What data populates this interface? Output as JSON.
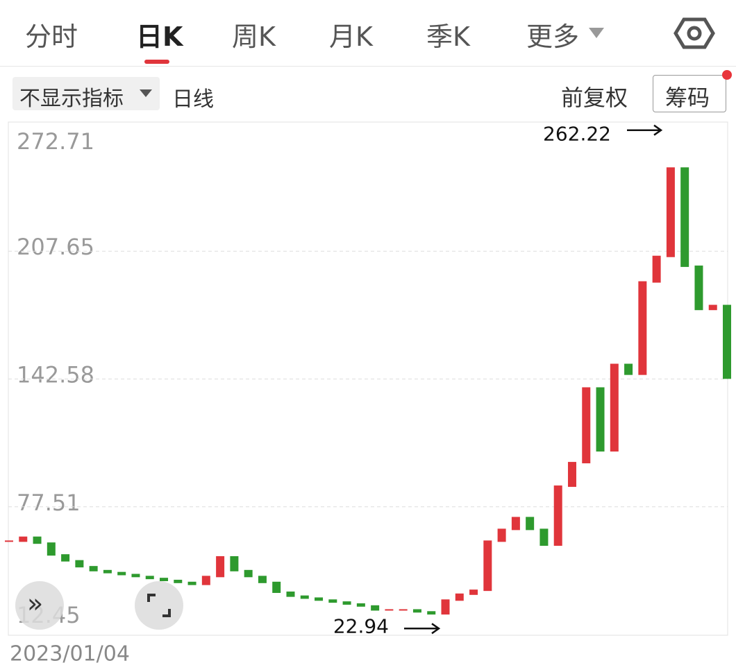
{
  "tabs": [
    "分时",
    "日K",
    "周K",
    "月K",
    "季K",
    "更多"
  ],
  "active_tab": 1,
  "toolbar": {
    "indicator": "不显示指标",
    "period": "日线",
    "adjust": "前复权",
    "chips": "筹码"
  },
  "chart_data": {
    "type": "candlestick",
    "start_date": "2023/01/04",
    "closes": [
      60,
      62,
      59,
      53,
      50,
      47,
      45,
      44,
      43,
      42,
      41,
      40,
      39,
      38,
      42,
      52,
      45,
      42,
      39,
      34,
      32,
      31,
      30,
      29,
      28,
      27,
      25,
      25,
      25,
      24,
      23,
      30,
      33,
      35,
      60,
      66,
      72,
      66,
      58,
      88,
      100,
      138,
      106,
      150,
      145,
      192,
      205,
      250,
      200,
      178,
      180,
      143
    ],
    "high": 262.22,
    "low": 22.94,
    "ylim": [
      12.45,
      272.71
    ],
    "yticks": [
      12.45,
      77.51,
      142.58,
      207.65,
      272.71
    ],
    "grid": true,
    "up_color": "#e0353b",
    "down_color": "#2e9a2e"
  }
}
